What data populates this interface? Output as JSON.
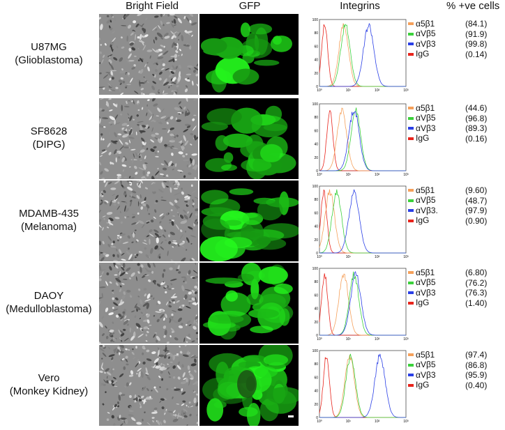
{
  "headers": {
    "bright_field": "Bright Field",
    "gfp": "GFP",
    "integrins": "Integrins",
    "pct": "% +ve cells"
  },
  "colors": {
    "a5b1": "#f5a05a",
    "aVb5": "#3bd13b",
    "aVb3": "#2a3fe6",
    "IgG": "#e8241c"
  },
  "rows": [
    {
      "line": "U87MG",
      "type": "(Glioblastoma)",
      "legend": [
        "α5β1",
        "αVβ5",
        "αVβ3",
        "IgG"
      ],
      "pct": [
        "(84.1)",
        "(91.9)",
        "(99.8)",
        "(0.14)"
      ],
      "peaks": {
        "IgG": 0.06,
        "a5b1": 0.28,
        "aVb5": 0.3,
        "aVb3": 0.57
      }
    },
    {
      "line": "SF8628",
      "type": "(DIPG)",
      "legend": [
        "α5β1",
        "αVβ5",
        "αVβ3",
        "IgG"
      ],
      "pct": [
        "(44.6)",
        "(96.8)",
        "(89.3)",
        "(0.16)"
      ],
      "peaks": {
        "IgG": 0.12,
        "a5b1": 0.26,
        "aVb5": 0.42,
        "aVb3": 0.4
      }
    },
    {
      "line": "MDAMB-435",
      "type": "(Melanoma)",
      "legend": [
        "α5β1",
        "αVβ5",
        "αVβ3.",
        "IgG"
      ],
      "pct": [
        "(9.60)",
        "(48.7)",
        "(97.9)",
        "(0.90)"
      ],
      "peaks": {
        "IgG": 0.05,
        "a5b1": 0.12,
        "aVb5": 0.2,
        "aVb3": 0.4
      }
    },
    {
      "line": "DAOY",
      "type": "(Medulloblastoma)",
      "legend": [
        "α5β1",
        "αVβ5",
        "αVβ3",
        "IgG"
      ],
      "pct": [
        "(6.80)",
        "(76.2)",
        "(76.3)",
        "(1.40)"
      ],
      "peaks": {
        "IgG": 0.06,
        "a5b1": 0.28,
        "aVb5": 0.4,
        "aVb3": 0.42
      }
    },
    {
      "line": "Vero",
      "type": "(Monkey Kidney)",
      "legend": [
        "α5β1",
        "αVβ5",
        "αVβ3",
        "IgG"
      ],
      "pct": [
        "(97.4)",
        "(86.8)",
        "(95.9)",
        "(0.40)"
      ],
      "peaks": {
        "IgG": 0.08,
        "a5b1": 0.35,
        "aVb5": 0.36,
        "aVb3": 0.7
      }
    }
  ],
  "axis": {
    "yticks": [
      "0",
      "20",
      "40",
      "60",
      "80",
      "100"
    ],
    "xticks": [
      "10⁰",
      "10¹",
      "10²",
      "10³"
    ]
  }
}
